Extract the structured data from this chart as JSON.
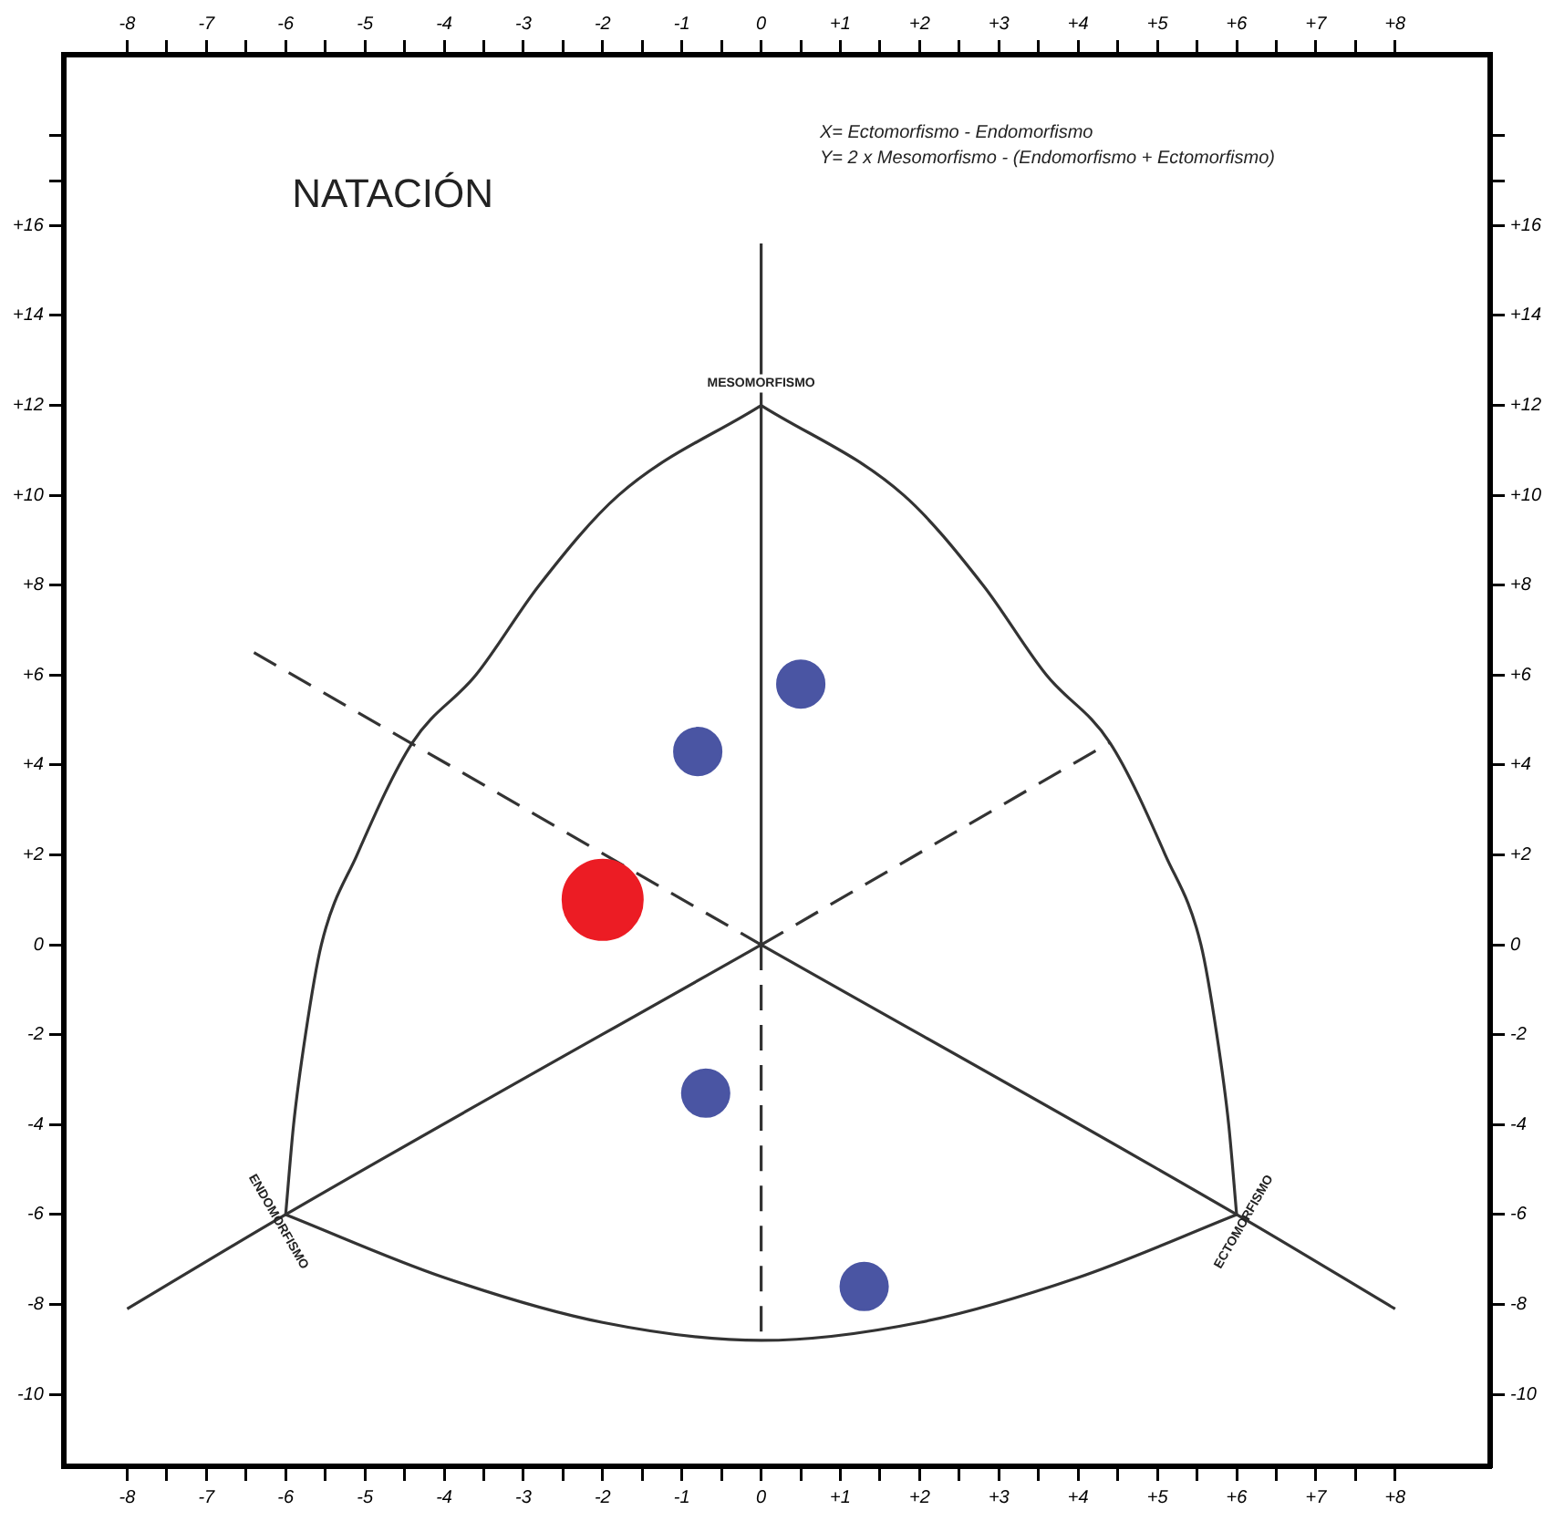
{
  "chart_data": {
    "type": "bubble",
    "title": "NATACIÓN",
    "annotations": [
      "X= Ectomorfismo - Endomorfismo",
      "Y= 2 x Mesomorfismo - (Endomorfismo + Ectomorfismo)",
      {
        "text": "MESOMORFISMO",
        "x": 0,
        "y": 12
      },
      {
        "text": "ENDOMORFISMO",
        "x": -6,
        "y": -6
      },
      {
        "text": "ECTOMORFISMO",
        "x": 6,
        "y": -6
      }
    ],
    "series": [
      {
        "type": "line",
        "marker": "none",
        "color": "#333333",
        "line_style": "solid",
        "x": [
          0,
          0
        ],
        "values": [
          0,
          15.6
        ]
      },
      {
        "type": "line",
        "marker": "none",
        "color": "#333333",
        "line_style": "solid",
        "x": [
          -8,
          -6,
          0
        ],
        "values": [
          -8.1,
          -6,
          0
        ]
      },
      {
        "type": "line",
        "marker": "none",
        "color": "#333333",
        "line_style": "solid",
        "x": [
          0,
          6,
          8
        ],
        "values": [
          0,
          -6,
          -8.1
        ]
      },
      {
        "type": "line",
        "marker": "none",
        "color": "#333333",
        "line_style": "dashed",
        "x": [
          -6.4,
          0
        ],
        "values": [
          6.5,
          0
        ]
      },
      {
        "type": "line",
        "marker": "none",
        "color": "#333333",
        "line_style": "dashed",
        "x": [
          0,
          4.4
        ],
        "values": [
          0,
          4.5
        ]
      },
      {
        "type": "line",
        "marker": "none",
        "color": "#333333",
        "line_style": "dashed",
        "x": [
          0,
          0
        ],
        "values": [
          0,
          -8.8
        ]
      },
      {
        "type": "line",
        "marker": "none",
        "color": "#333333",
        "line_style": "solid",
        "x": [
          0,
          -1.8,
          -2.8,
          -3.6,
          -4.4,
          -5.1,
          -5.55,
          -5.75,
          -5.9,
          -6
        ],
        "values": [
          12,
          10,
          8,
          6,
          4.5,
          2,
          0,
          -2,
          -4,
          -6
        ]
      },
      {
        "type": "line",
        "marker": "none",
        "color": "#333333",
        "line_style": "solid",
        "x": [
          0,
          1.8,
          2.8,
          3.6,
          4.4,
          5.1,
          5.55,
          5.75,
          5.9,
          6
        ],
        "values": [
          12,
          10,
          8,
          6,
          4.5,
          2,
          0,
          -2,
          -4,
          -6
        ]
      },
      {
        "type": "line",
        "marker": "none",
        "color": "#333333",
        "line_style": "solid",
        "x": [
          -6,
          -4,
          -2,
          0,
          2,
          4,
          6
        ],
        "values": [
          -6,
          -7.4,
          -8.4,
          -8.8,
          -8.4,
          -7.4,
          -6
        ]
      },
      {
        "color": "#4a55a3",
        "x": [
          -0.8,
          0.5,
          -0.7,
          1.3
        ],
        "values": [
          4.3,
          5.8,
          -3.3,
          -7.6
        ],
        "sizes": [
          0.35,
          0.35,
          0.35,
          0.35
        ]
      },
      {
        "color": "#ec1c24",
        "x": [
          -2
        ],
        "values": [
          1
        ],
        "sizes": [
          1
        ]
      }
    ],
    "xlim": [
      -8.8,
      9.2
    ],
    "xticks": [
      {
        "value": -8,
        "label": "-8"
      },
      {
        "value": -7.5,
        "label": null
      },
      {
        "value": -7,
        "label": "-7"
      },
      {
        "value": -6.5,
        "label": null
      },
      {
        "value": -6,
        "label": "-6"
      },
      {
        "value": -5.5,
        "label": null
      },
      {
        "value": -5,
        "label": "-5"
      },
      {
        "value": -4.5,
        "label": null
      },
      {
        "value": -4,
        "label": "-4"
      },
      {
        "value": -3.5,
        "label": null
      },
      {
        "value": -3,
        "label": "-3"
      },
      {
        "value": -2.5,
        "label": null
      },
      {
        "value": -2,
        "label": "-2"
      },
      {
        "value": -1.5,
        "label": null
      },
      {
        "value": -1,
        "label": "-1"
      },
      {
        "value": -0.5,
        "label": null
      },
      0,
      {
        "value": 0.5,
        "label": null
      },
      {
        "value": 1,
        "label": "+1"
      },
      {
        "value": 1.5,
        "label": null
      },
      {
        "value": 2,
        "label": "+2"
      },
      {
        "value": 2.5,
        "label": null
      },
      {
        "value": 3,
        "label": "+3"
      },
      {
        "value": 3.5,
        "label": null
      },
      {
        "value": 4,
        "label": "+4"
      },
      {
        "value": 4.5,
        "label": null
      },
      {
        "value": 5,
        "label": "+5"
      },
      {
        "value": 5.5,
        "label": null
      },
      {
        "value": 6,
        "label": "+6"
      },
      {
        "value": 6.5,
        "label": null
      },
      {
        "value": 7,
        "label": "+7"
      },
      {
        "value": 7.5,
        "label": null
      },
      {
        "value": 8,
        "label": "+8"
      }
    ],
    "x2lim": [
      -8.8,
      9.2
    ],
    "x2ticks": [
      {
        "value": -8,
        "label": "-8"
      },
      {
        "value": -7.5,
        "label": null
      },
      {
        "value": -7,
        "label": "-7"
      },
      {
        "value": -6.5,
        "label": null
      },
      {
        "value": -6,
        "label": "-6"
      },
      {
        "value": -5.5,
        "label": null
      },
      {
        "value": -5,
        "label": "-5"
      },
      {
        "value": -4.5,
        "label": null
      },
      {
        "value": -4,
        "label": "-4"
      },
      {
        "value": -3.5,
        "label": null
      },
      {
        "value": -3,
        "label": "-3"
      },
      {
        "value": -2.5,
        "label": null
      },
      {
        "value": -2,
        "label": "-2"
      },
      {
        "value": -1.5,
        "label": null
      },
      {
        "value": -1,
        "label": "-1"
      },
      {
        "value": -0.5,
        "label": null
      },
      0,
      {
        "value": 0.5,
        "label": null
      },
      {
        "value": 1,
        "label": "+1"
      },
      {
        "value": 1.5,
        "label": null
      },
      {
        "value": 2,
        "label": "+2"
      },
      {
        "value": 2.5,
        "label": null
      },
      {
        "value": 3,
        "label": "+3"
      },
      {
        "value": 3.5,
        "label": null
      },
      {
        "value": 4,
        "label": "+4"
      },
      {
        "value": 4.5,
        "label": null
      },
      {
        "value": 5,
        "label": "+5"
      },
      {
        "value": 5.5,
        "label": null
      },
      {
        "value": 6,
        "label": "+6"
      },
      {
        "value": 6.5,
        "label": null
      },
      {
        "value": 7,
        "label": "+7"
      },
      {
        "value": 7.5,
        "label": null
      },
      {
        "value": 8,
        "label": "+8"
      }
    ],
    "ylim": [
      -11.6,
      19.8
    ],
    "yticks": [
      -10,
      -8,
      -6,
      -4,
      -2,
      0,
      {
        "value": 2,
        "label": "+2"
      },
      {
        "value": 4,
        "label": "+4"
      },
      {
        "value": 6,
        "label": "+6"
      },
      {
        "value": 8,
        "label": "+8"
      },
      {
        "value": 10,
        "label": "+10"
      },
      {
        "value": 12,
        "label": "+12"
      },
      {
        "value": 14,
        "label": "+14"
      },
      {
        "value": 16,
        "label": "+16"
      },
      {
        "value": 17,
        "label": null
      },
      {
        "value": 18,
        "label": null
      }
    ],
    "y2lim": [
      -11.6,
      19.8
    ],
    "y2ticks": [
      -10,
      -8,
      -6,
      -4,
      -2,
      0,
      {
        "value": 2,
        "label": "+2"
      },
      {
        "value": 4,
        "label": "+4"
      },
      {
        "value": 6,
        "label": "+6"
      },
      {
        "value": 8,
        "label": "+8"
      },
      {
        "value": 10,
        "label": "+10"
      },
      {
        "value": 12,
        "label": "+12"
      },
      {
        "value": 14,
        "label": "+14"
      },
      {
        "value": 16,
        "label": "+16"
      },
      {
        "value": 17,
        "label": null
      },
      {
        "value": 18,
        "label": null
      }
    ],
    "grid": false,
    "legend": false,
    "marker": "circle"
  }
}
